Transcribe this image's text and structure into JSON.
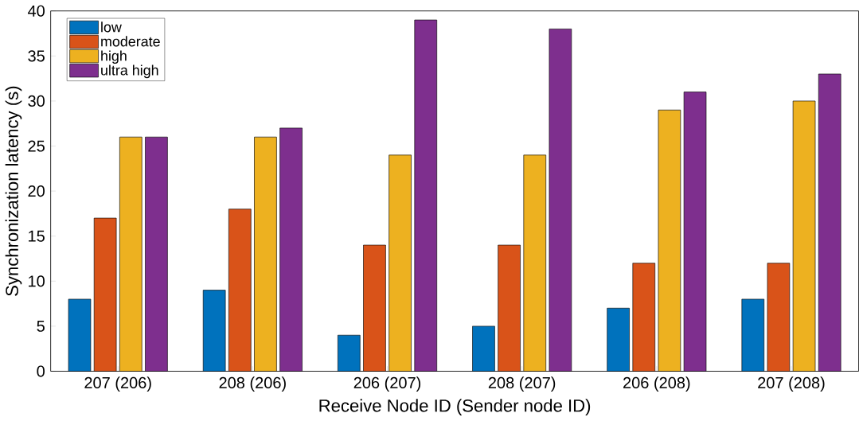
{
  "chart_data": {
    "type": "bar",
    "xlabel": "Receive Node ID (Sender node ID)",
    "ylabel": "Synchronization latency (s)",
    "categories": [
      "207 (206)",
      "208 (206)",
      "206 (207)",
      "208 (207)",
      "206 (208)",
      "207 (208)"
    ],
    "series": [
      {
        "name": "low",
        "color": "#0072bd",
        "values": [
          8,
          9,
          4,
          5,
          7,
          8
        ]
      },
      {
        "name": "moderate",
        "color": "#d95319",
        "values": [
          17,
          18,
          14,
          14,
          12,
          12
        ]
      },
      {
        "name": "high",
        "color": "#edb120",
        "values": [
          26,
          26,
          24,
          24,
          29,
          30
        ]
      },
      {
        "name": "ultra high",
        "color": "#7e2f8e",
        "values": [
          26,
          27,
          39,
          38,
          31,
          33
        ]
      }
    ],
    "ylim": [
      0,
      40
    ],
    "yticks": [
      0,
      5,
      10,
      15,
      20,
      25,
      30,
      35,
      40
    ],
    "grid": false,
    "legend": "top left"
  }
}
